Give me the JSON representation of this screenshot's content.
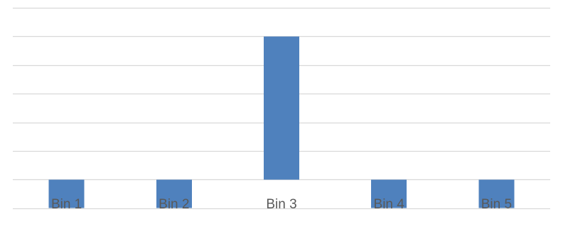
{
  "chart_data": {
    "type": "bar",
    "title": "",
    "xlabel": "",
    "ylabel": "",
    "categories": [
      "Bin 1",
      "Bin 2",
      "Bin 3",
      "Bin 4",
      "Bin 5"
    ],
    "values": [
      -1,
      -1,
      5,
      -1,
      -1
    ],
    "ylim": [
      -2,
      6
    ],
    "y_gridlines": [
      -2,
      -1,
      0,
      1,
      2,
      3,
      4,
      5,
      6
    ],
    "y_tick_labels_visible": false,
    "grid": true,
    "legend": "none",
    "colors": {
      "bar": "#4f81bd",
      "grid": "#d9d9d9",
      "text": "#595959"
    }
  }
}
